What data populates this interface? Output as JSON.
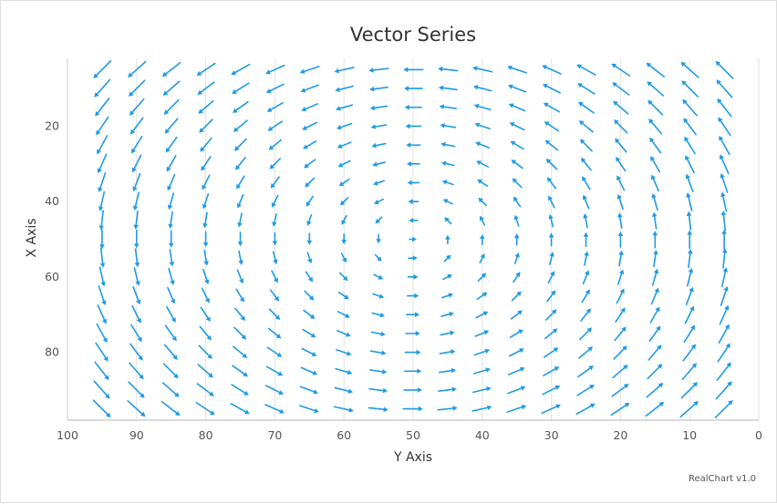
{
  "chart_data": {
    "type": "vector",
    "title": "Vector Series",
    "xlabel": "Y Axis",
    "ylabel": "X Axis",
    "credit": "RealChart v1.0",
    "xlim": [
      100,
      0
    ],
    "ylim": [
      2,
      98
    ],
    "x_reversed": true,
    "y_reversed": true,
    "x_ticks": [
      100,
      90,
      80,
      70,
      60,
      50,
      40,
      30,
      20,
      10,
      0
    ],
    "y_ticks": [
      20,
      40,
      60,
      80
    ],
    "x_grid": [
      90,
      80,
      70,
      60,
      50,
      40,
      30,
      20,
      10
    ],
    "x_positions": [
      95,
      90,
      85,
      80,
      75,
      70,
      65,
      60,
      55,
      50,
      45,
      40,
      35,
      30,
      25,
      20,
      15,
      10,
      5
    ],
    "y_positions": [
      5,
      10,
      15,
      20,
      25,
      30,
      35,
      40,
      45,
      50,
      55,
      60,
      65,
      70,
      75,
      80,
      85,
      90,
      95
    ],
    "vector_rule": "length = 0.3 + 0.7 * hypot(x - 50, y - 50) / 63.64; direction = atan2(x - 50, y - 50)",
    "color": "#1e9be6"
  }
}
